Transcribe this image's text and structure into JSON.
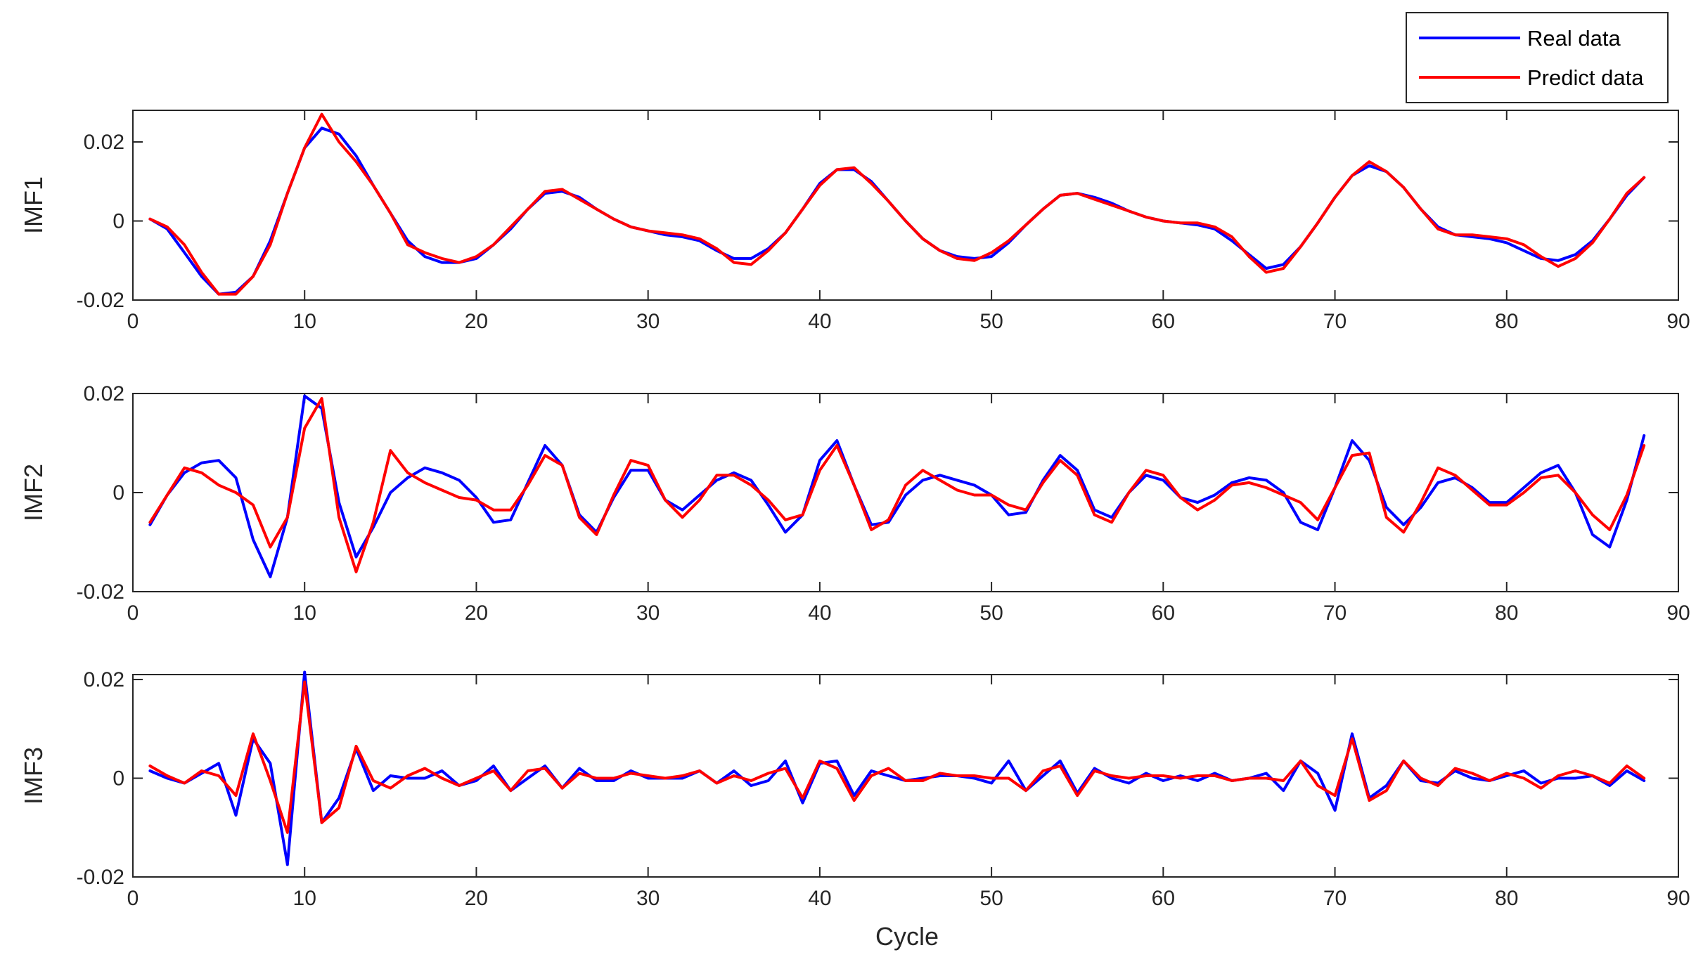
{
  "colors": {
    "real": "#0000FF",
    "predict": "#FF0000",
    "axis": "#262626"
  },
  "legend": {
    "placement": "top-right",
    "entries": [
      "Real data",
      "Predict data"
    ]
  },
  "chart_data": [
    {
      "type": "line",
      "ylabel": "IMF1",
      "xlabel": "",
      "xlim": [
        0,
        90
      ],
      "ylim": [
        -0.02,
        0.028
      ],
      "xticks": [
        0,
        10,
        20,
        30,
        40,
        50,
        60,
        70,
        80,
        90
      ],
      "yticks": [
        -0.02,
        0,
        0.02
      ],
      "xtick_labels": [
        "0",
        "10",
        "20",
        "30",
        "40",
        "50",
        "60",
        "70",
        "80",
        "90"
      ],
      "ytick_labels": [
        "-0.02",
        "0",
        "0.02"
      ],
      "x": [
        1,
        2,
        3,
        4,
        5,
        6,
        7,
        8,
        9,
        10,
        11,
        12,
        13,
        14,
        15,
        16,
        17,
        18,
        19,
        20,
        21,
        22,
        23,
        24,
        25,
        26,
        27,
        28,
        29,
        30,
        31,
        32,
        33,
        34,
        35,
        36,
        37,
        38,
        39,
        40,
        41,
        42,
        43,
        44,
        45,
        46,
        47,
        48,
        49,
        50,
        51,
        52,
        53,
        54,
        55,
        56,
        57,
        58,
        59,
        60,
        61,
        62,
        63,
        64,
        65,
        66,
        67,
        68,
        69,
        70,
        71,
        72,
        73,
        74,
        75,
        76,
        77,
        78,
        79,
        80,
        81,
        82,
        83,
        84,
        85,
        86,
        87,
        88
      ],
      "series": [
        {
          "name": "Real data",
          "values": [
            0.0005,
            -0.002,
            -0.008,
            -0.014,
            -0.0185,
            -0.018,
            -0.014,
            -0.005,
            0.007,
            0.0185,
            0.0235,
            0.022,
            0.0165,
            0.009,
            0.002,
            -0.005,
            -0.009,
            -0.0105,
            -0.0105,
            -0.0095,
            -0.006,
            -0.002,
            0.003,
            0.007,
            0.0075,
            0.006,
            0.003,
            0.0005,
            -0.0015,
            -0.0025,
            -0.0035,
            -0.004,
            -0.005,
            -0.0075,
            -0.0095,
            -0.0095,
            -0.007,
            -0.003,
            0.003,
            0.0095,
            0.013,
            0.013,
            0.01,
            0.005,
            0.0,
            -0.0045,
            -0.0075,
            -0.009,
            -0.0095,
            -0.009,
            -0.0055,
            -0.001,
            0.003,
            0.0065,
            0.007,
            0.006,
            0.0045,
            0.0025,
            0.001,
            0.0,
            -0.0005,
            -0.001,
            -0.002,
            -0.005,
            -0.0085,
            -0.012,
            -0.011,
            -0.0065,
            -0.0005,
            0.006,
            0.0115,
            0.014,
            0.0125,
            0.0085,
            0.003,
            -0.0015,
            -0.0035,
            -0.004,
            -0.0045,
            -0.0055,
            -0.0075,
            -0.0095,
            -0.01,
            -0.0085,
            -0.005,
            0.0005,
            0.0065,
            0.011
          ]
        },
        {
          "name": "Predict data",
          "values": [
            0.0005,
            -0.0015,
            -0.006,
            -0.013,
            -0.0185,
            -0.0185,
            -0.014,
            -0.006,
            0.007,
            0.0185,
            0.027,
            0.02,
            0.015,
            0.009,
            0.002,
            -0.006,
            -0.008,
            -0.0095,
            -0.0105,
            -0.009,
            -0.006,
            -0.0015,
            0.003,
            0.0075,
            0.008,
            0.0055,
            0.003,
            0.0005,
            -0.0015,
            -0.0025,
            -0.003,
            -0.0035,
            -0.0045,
            -0.007,
            -0.0105,
            -0.011,
            -0.0075,
            -0.003,
            0.003,
            0.009,
            0.013,
            0.0135,
            0.0095,
            0.005,
            0.0,
            -0.0045,
            -0.0075,
            -0.0095,
            -0.01,
            -0.008,
            -0.005,
            -0.001,
            0.003,
            0.0065,
            0.007,
            0.0055,
            0.004,
            0.0025,
            0.001,
            0.0,
            -0.0005,
            -0.0005,
            -0.0015,
            -0.004,
            -0.009,
            -0.013,
            -0.012,
            -0.0065,
            -0.0005,
            0.006,
            0.0115,
            0.015,
            0.0125,
            0.0085,
            0.003,
            -0.002,
            -0.0035,
            -0.0035,
            -0.004,
            -0.0045,
            -0.006,
            -0.009,
            -0.0115,
            -0.0095,
            -0.0055,
            0.0005,
            0.007,
            0.011
          ]
        }
      ]
    },
    {
      "type": "line",
      "ylabel": "IMF2",
      "xlabel": "",
      "xlim": [
        0,
        90
      ],
      "ylim": [
        -0.02,
        0.02
      ],
      "xticks": [
        0,
        10,
        20,
        30,
        40,
        50,
        60,
        70,
        80,
        90
      ],
      "yticks": [
        -0.02,
        0,
        0.02
      ],
      "xtick_labels": [
        "0",
        "10",
        "20",
        "30",
        "40",
        "50",
        "60",
        "70",
        "80",
        "90"
      ],
      "ytick_labels": [
        "-0.02",
        "0",
        "0.02"
      ],
      "x": [
        1,
        2,
        3,
        4,
        5,
        6,
        7,
        8,
        9,
        10,
        11,
        12,
        13,
        14,
        15,
        16,
        17,
        18,
        19,
        20,
        21,
        22,
        23,
        24,
        25,
        26,
        27,
        28,
        29,
        30,
        31,
        32,
        33,
        34,
        35,
        36,
        37,
        38,
        39,
        40,
        41,
        42,
        43,
        44,
        45,
        46,
        47,
        48,
        49,
        50,
        51,
        52,
        53,
        54,
        55,
        56,
        57,
        58,
        59,
        60,
        61,
        62,
        63,
        64,
        65,
        66,
        67,
        68,
        69,
        70,
        71,
        72,
        73,
        74,
        75,
        76,
        77,
        78,
        79,
        80,
        81,
        82,
        83,
        84,
        85,
        86,
        87,
        88
      ],
      "series": [
        {
          "name": "Real data",
          "values": [
            -0.0065,
            -0.0005,
            0.004,
            0.006,
            0.0065,
            0.003,
            -0.0095,
            -0.017,
            -0.005,
            0.0195,
            0.017,
            -0.002,
            -0.013,
            -0.007,
            0.0,
            0.003,
            0.005,
            0.004,
            0.0025,
            -0.001,
            -0.006,
            -0.0055,
            0.002,
            0.0095,
            0.0055,
            -0.0045,
            -0.008,
            -0.001,
            0.0045,
            0.0045,
            -0.0015,
            -0.0035,
            -0.0005,
            0.0025,
            0.004,
            0.0025,
            -0.0025,
            -0.008,
            -0.0045,
            0.0065,
            0.0105,
            0.0015,
            -0.0065,
            -0.006,
            -0.0005,
            0.0025,
            0.0035,
            0.0025,
            0.0015,
            -0.0005,
            -0.0045,
            -0.004,
            0.0025,
            0.0075,
            0.0045,
            -0.0035,
            -0.005,
            0.0,
            0.0035,
            0.0025,
            -0.001,
            -0.002,
            -0.0005,
            0.002,
            0.003,
            0.0025,
            0.0,
            -0.006,
            -0.0075,
            0.001,
            0.0105,
            0.0065,
            -0.003,
            -0.0065,
            -0.003,
            0.002,
            0.003,
            0.001,
            -0.002,
            -0.002,
            0.001,
            0.004,
            0.0055,
            0.0,
            -0.0085,
            -0.011,
            -0.0015,
            0.0115
          ]
        },
        {
          "name": "Predict data",
          "values": [
            -0.006,
            -0.0005,
            0.005,
            0.004,
            0.0015,
            0.0,
            -0.0025,
            -0.011,
            -0.005,
            0.013,
            0.019,
            -0.005,
            -0.016,
            -0.006,
            0.0085,
            0.004,
            0.002,
            0.0005,
            -0.001,
            -0.0015,
            -0.0035,
            -0.0035,
            0.0015,
            0.0075,
            0.0055,
            -0.005,
            -0.0085,
            -0.0005,
            0.0065,
            0.0055,
            -0.0015,
            -0.005,
            -0.0015,
            0.0035,
            0.0035,
            0.0015,
            -0.0015,
            -0.0055,
            -0.0045,
            0.0045,
            0.0095,
            0.0015,
            -0.0075,
            -0.0055,
            0.0015,
            0.0045,
            0.0025,
            0.0005,
            -0.0005,
            -0.0005,
            -0.0025,
            -0.0035,
            0.002,
            0.0065,
            0.0035,
            -0.0045,
            -0.006,
            0.0,
            0.0045,
            0.0035,
            -0.001,
            -0.0035,
            -0.0015,
            0.0015,
            0.002,
            0.001,
            -0.0005,
            -0.002,
            -0.0055,
            0.001,
            0.0075,
            0.008,
            -0.005,
            -0.008,
            -0.002,
            0.005,
            0.0035,
            0.0005,
            -0.0025,
            -0.0025,
            0.0,
            0.003,
            0.0035,
            0.0,
            -0.0045,
            -0.0075,
            -0.0005,
            0.0095
          ]
        }
      ]
    },
    {
      "type": "line",
      "ylabel": "IMF3",
      "xlabel": "Cycle",
      "xlim": [
        0,
        90
      ],
      "ylim": [
        -0.02,
        0.021
      ],
      "xticks": [
        0,
        10,
        20,
        30,
        40,
        50,
        60,
        70,
        80,
        90
      ],
      "yticks": [
        -0.02,
        0,
        0.02
      ],
      "xtick_labels": [
        "0",
        "10",
        "20",
        "30",
        "40",
        "50",
        "60",
        "70",
        "80",
        "90"
      ],
      "ytick_labels": [
        "-0.02",
        "0",
        "0.02"
      ],
      "x": [
        1,
        2,
        3,
        4,
        5,
        6,
        7,
        8,
        9,
        10,
        11,
        12,
        13,
        14,
        15,
        16,
        17,
        18,
        19,
        20,
        21,
        22,
        23,
        24,
        25,
        26,
        27,
        28,
        29,
        30,
        31,
        32,
        33,
        34,
        35,
        36,
        37,
        38,
        39,
        40,
        41,
        42,
        43,
        44,
        45,
        46,
        47,
        48,
        49,
        50,
        51,
        52,
        53,
        54,
        55,
        56,
        57,
        58,
        59,
        60,
        61,
        62,
        63,
        64,
        65,
        66,
        67,
        68,
        69,
        70,
        71,
        72,
        73,
        74,
        75,
        76,
        77,
        78,
        79,
        80,
        81,
        82,
        83,
        84,
        85,
        86,
        87,
        88
      ],
      "series": [
        {
          "name": "Real data",
          "values": [
            0.0015,
            0.0,
            -0.001,
            0.001,
            0.003,
            -0.0075,
            0.008,
            0.003,
            -0.0175,
            0.0215,
            -0.009,
            -0.004,
            0.006,
            -0.0025,
            0.0005,
            0.0,
            0.0,
            0.0015,
            -0.0015,
            -0.0005,
            0.0025,
            -0.0025,
            0.0,
            0.0025,
            -0.002,
            0.002,
            -0.0005,
            -0.0005,
            0.0015,
            0.0,
            0.0,
            0.0,
            0.0015,
            -0.001,
            0.0015,
            -0.0015,
            -0.0005,
            0.0035,
            -0.005,
            0.003,
            0.0035,
            -0.0035,
            0.0015,
            0.0005,
            -0.0005,
            0.0,
            0.0005,
            0.0005,
            0.0,
            -0.001,
            0.0035,
            -0.0025,
            0.0005,
            0.0035,
            -0.003,
            0.002,
            0.0,
            -0.001,
            0.001,
            -0.0005,
            0.0005,
            -0.0005,
            0.001,
            -0.0005,
            0.0,
            0.001,
            -0.0025,
            0.0035,
            0.001,
            -0.0065,
            0.009,
            -0.004,
            -0.0015,
            0.0035,
            -0.0005,
            -0.001,
            0.0015,
            0.0,
            -0.0005,
            0.0005,
            0.0015,
            -0.001,
            0.0,
            0.0,
            0.0005,
            -0.0015,
            0.0015,
            -0.0005
          ]
        },
        {
          "name": "Predict data",
          "values": [
            0.0025,
            0.0005,
            -0.001,
            0.0015,
            0.0005,
            -0.0035,
            0.009,
            -0.0005,
            -0.011,
            0.0195,
            -0.009,
            -0.006,
            0.0065,
            -0.0005,
            -0.002,
            0.0005,
            0.002,
            0.0,
            -0.0015,
            0.0,
            0.0015,
            -0.0025,
            0.0015,
            0.002,
            -0.002,
            0.001,
            0.0,
            0.0,
            0.001,
            0.0005,
            0.0,
            0.0005,
            0.0015,
            -0.001,
            0.0005,
            -0.0005,
            0.001,
            0.002,
            -0.004,
            0.0035,
            0.002,
            -0.0045,
            0.0005,
            0.002,
            -0.0005,
            -0.0005,
            0.001,
            0.0005,
            0.0005,
            0.0,
            0.0,
            -0.0025,
            0.0015,
            0.0025,
            -0.0035,
            0.0015,
            0.0005,
            0.0,
            0.0005,
            0.0005,
            0.0,
            0.0005,
            0.0005,
            -0.0005,
            0.0,
            0.0,
            -0.0005,
            0.0035,
            -0.0015,
            -0.0035,
            0.008,
            -0.0045,
            -0.0025,
            0.0035,
            0.0,
            -0.0015,
            0.002,
            0.001,
            -0.0005,
            0.001,
            0.0,
            -0.002,
            0.0005,
            0.0015,
            0.0005,
            -0.001,
            0.0025,
            0.0
          ]
        }
      ]
    }
  ]
}
